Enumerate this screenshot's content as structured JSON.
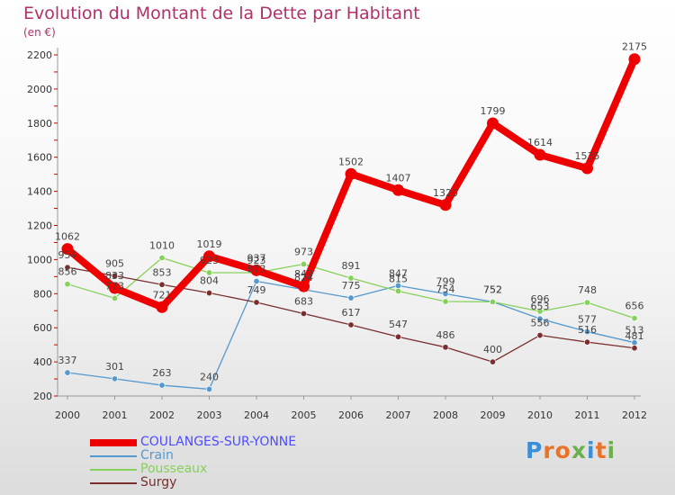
{
  "title": "Evolution du Montant de la Dette par Habitant",
  "unit_label": "(en €)",
  "brand": {
    "text": "Proxiti",
    "letter_colors": [
      "#3b8ed8",
      "#e8732a",
      "#e8732a",
      "#6ab04c",
      "#3b8ed8",
      "#e8732a",
      "#6ab04c"
    ]
  },
  "chart_data": {
    "type": "line",
    "x": [
      "2000",
      "2001",
      "2002",
      "2003",
      "2004",
      "2005",
      "2006",
      "2007",
      "2008",
      "2009",
      "2010",
      "2011",
      "2012"
    ],
    "ylim": [
      200,
      2200
    ],
    "yticks": [
      200,
      400,
      600,
      800,
      1000,
      1200,
      1400,
      1600,
      1800,
      2000,
      2200
    ],
    "grid": false,
    "legend_position": "bottom-left",
    "series": [
      {
        "name": "COULANGES-SUR-YONNE",
        "color": "#ee0000",
        "legend_color": "#4d4dff",
        "values": [
          1062,
          833,
          721,
          1019,
          937,
          843,
          1502,
          1407,
          1320,
          1799,
          1614,
          1535,
          2175
        ],
        "labels": [
          "1062",
          "833",
          "721",
          "1019",
          "937",
          "843",
          "1502",
          "1407",
          "1320",
          "1799",
          "1614",
          "1535",
          "2175"
        ]
      },
      {
        "name": "Crain",
        "color": "#5499cf",
        "legend_color": "#5499cf",
        "values": [
          337,
          301,
          263,
          240,
          873,
          824,
          775,
          847,
          799,
          752,
          653,
          577,
          513
        ],
        "labels": [
          "337",
          "301",
          "263",
          "240",
          "873",
          "824",
          "775",
          "847",
          "799",
          "752",
          "653",
          "577",
          "513"
        ]
      },
      {
        "name": "Pousseaux",
        "color": "#86d15a",
        "legend_color": "#86d15a",
        "values": [
          856,
          773,
          1010,
          923,
          923,
          973,
          891,
          815,
          754,
          752,
          696,
          748,
          656
        ],
        "labels": [
          "856",
          "773",
          "1010",
          "923",
          "923",
          "973",
          "891",
          "815",
          "754",
          "752",
          "696",
          "748",
          "656"
        ]
      },
      {
        "name": "Surgy",
        "color": "#7a2e2e",
        "legend_color": "#7a2e2e",
        "values": [
          954,
          905,
          853,
          804,
          749,
          683,
          617,
          547,
          486,
          400,
          556,
          516,
          481
        ],
        "labels": [
          "954",
          "905",
          "853",
          "804",
          "749",
          "683",
          "617",
          "547",
          "486",
          "400",
          "556",
          "516",
          "481"
        ]
      }
    ]
  }
}
